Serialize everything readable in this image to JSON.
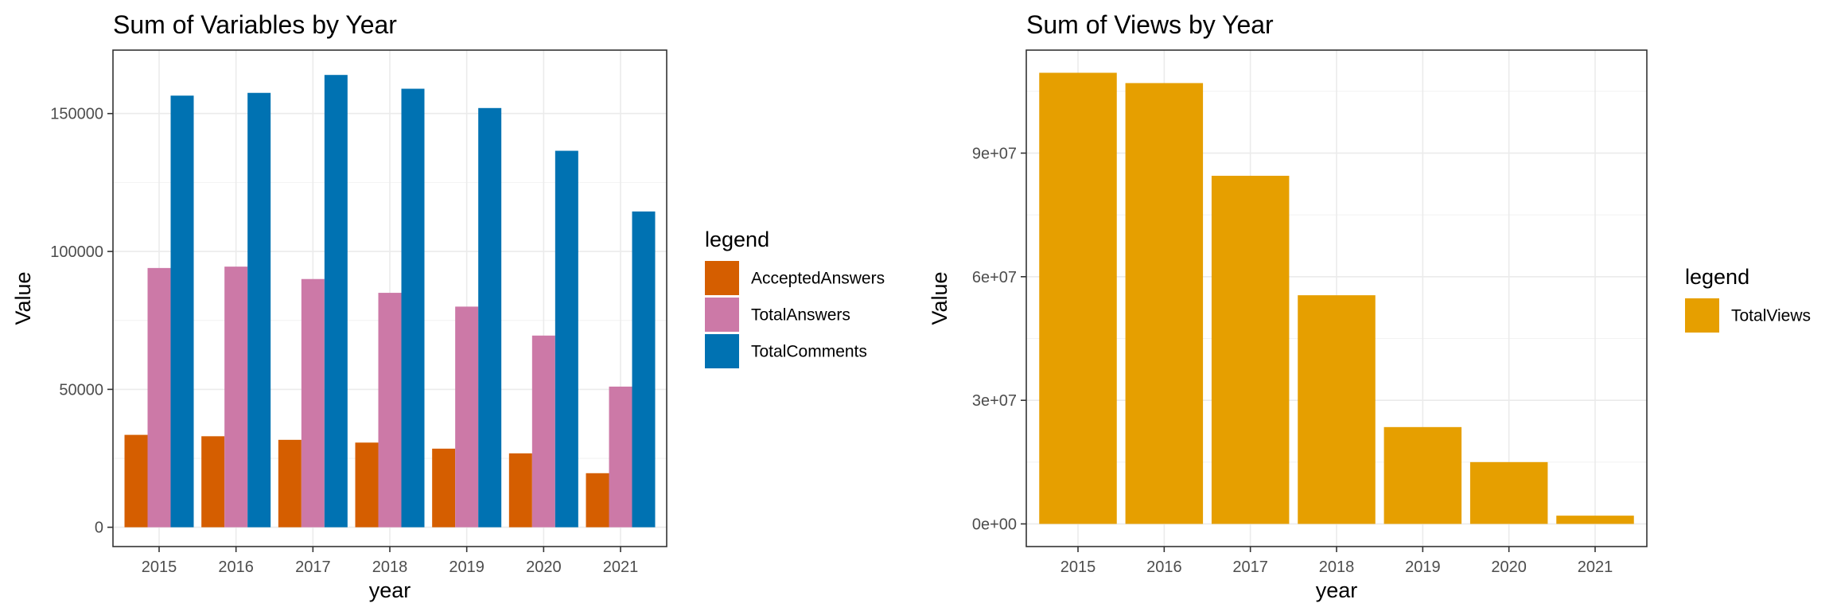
{
  "chart_data": [
    {
      "type": "bar",
      "title": "Sum of Variables by Year",
      "xlabel": "year",
      "ylabel": "Value",
      "categories": [
        "2015",
        "2016",
        "2017",
        "2018",
        "2019",
        "2020",
        "2021"
      ],
      "yticks": [
        0,
        50000,
        100000,
        150000
      ],
      "ytick_labels": [
        "0",
        "50000",
        "100000",
        "150000"
      ],
      "ylim": [
        -7000,
        173000
      ],
      "grid": true,
      "legend": {
        "title": "legend",
        "position": "right"
      },
      "series": [
        {
          "name": "AcceptedAnswers",
          "color": "#D55E00",
          "values": [
            33500,
            33000,
            31700,
            30700,
            28500,
            26800,
            19600
          ]
        },
        {
          "name": "TotalAnswers",
          "color": "#CC79A7",
          "values": [
            94000,
            94500,
            90000,
            85000,
            80000,
            69500,
            51000
          ]
        },
        {
          "name": "TotalComments",
          "color": "#0072B2",
          "values": [
            156500,
            157500,
            164000,
            159000,
            152000,
            136500,
            114500
          ]
        }
      ]
    },
    {
      "type": "bar",
      "title": "Sum of Views by Year",
      "xlabel": "year",
      "ylabel": "Value",
      "categories": [
        "2015",
        "2016",
        "2017",
        "2018",
        "2019",
        "2020",
        "2021"
      ],
      "yticks": [
        0,
        30000000,
        60000000,
        90000000
      ],
      "ytick_labels": [
        "0e+00",
        "3e+07",
        "6e+07",
        "9e+07"
      ],
      "ylim": [
        -5500000,
        115000000
      ],
      "grid": true,
      "legend": {
        "title": "legend",
        "position": "right"
      },
      "series": [
        {
          "name": "TotalViews",
          "color": "#E69F00",
          "values": [
            109500000,
            107000000,
            84500000,
            55500000,
            23500000,
            15000000,
            2000000
          ]
        }
      ]
    }
  ]
}
